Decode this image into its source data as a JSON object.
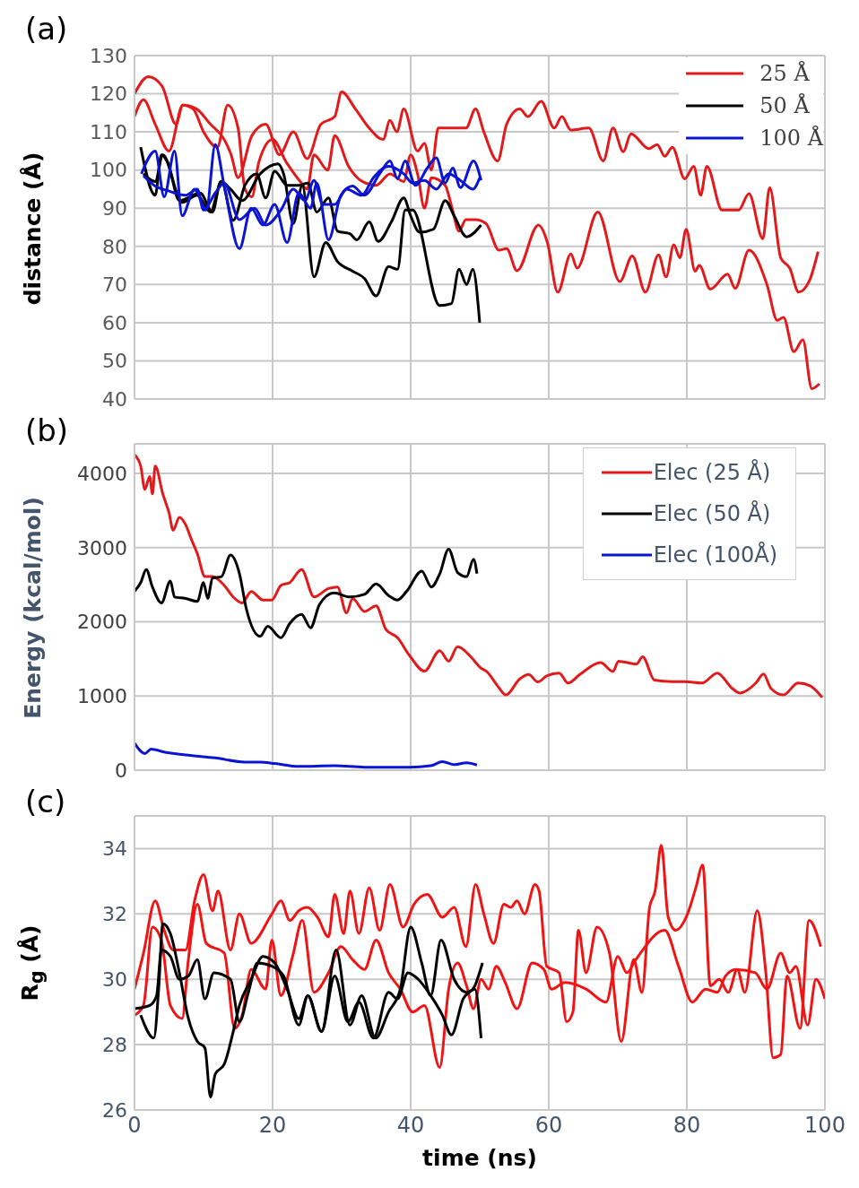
{
  "chart_data": [
    {
      "type": "line",
      "title": "(a)",
      "ylabel": "distance (Å)",
      "xlim": [
        0,
        100
      ],
      "xticks": [
        0,
        20,
        40,
        60,
        80,
        100
      ],
      "ylim": [
        40,
        130
      ],
      "yticks": [
        40,
        50,
        60,
        70,
        80,
        90,
        100,
        110,
        120,
        130
      ],
      "grid": true,
      "legend": "top right",
      "tick_labels": "y",
      "series": [
        {
          "name": "25 Å",
          "color": "#e31a1c",
          "x": [
            0,
            2,
            4,
            6,
            7,
            9,
            11,
            13,
            14,
            15,
            17,
            19,
            21,
            23,
            25,
            27,
            29,
            30,
            32,
            34,
            36,
            37,
            38,
            39,
            41,
            42,
            43,
            44,
            46,
            48,
            49.4,
            50.6,
            52.6,
            53.9,
            55.8,
            57,
            58.9,
            60.8,
            61.9,
            63.2,
            65.8,
            67.9,
            69.3,
            70.8,
            71.9,
            74.5,
            75.7,
            76.8,
            77.9,
            79.7,
            81,
            82,
            82.9,
            85.1,
            87.5,
            89,
            91,
            92,
            93.6,
            94.9,
            96.2,
            97.7,
            99
          ],
          "values": [
            120,
            124.5,
            122,
            112,
            117,
            116,
            112,
            108,
            104,
            98,
            109,
            112,
            104,
            110,
            103,
            112,
            114,
            120.5,
            116,
            111,
            108,
            113,
            110,
            116,
            105,
            107,
            100,
            111,
            111,
            111,
            116,
            110,
            102.4,
            112,
            116,
            114,
            118,
            111,
            114,
            110.5,
            111,
            102.4,
            111,
            104.8,
            109.5,
            105.6,
            106.7,
            103.6,
            106,
            97.7,
            101,
            93.4,
            101,
            89.5,
            89.5,
            93.8,
            82,
            95.4,
            77,
            74.3,
            68,
            70.8,
            78.6
          ]
        },
        {
          "color": "#e31a1c",
          "x": [
            0,
            1.3,
            3,
            5,
            7,
            8.5,
            10,
            12,
            13.5,
            15,
            16,
            17,
            18,
            20,
            22,
            24,
            25,
            26,
            28,
            29,
            31,
            33,
            35,
            37,
            39,
            40,
            41,
            42,
            43,
            45,
            46,
            47,
            48,
            49.4,
            50.9,
            52.8,
            53.9,
            55.4,
            58.5,
            59.8,
            61.3,
            63.2,
            64.1,
            67.1,
            70.3,
            72.1,
            74,
            75.9,
            77,
            78.1,
            79,
            79.9,
            81.2,
            81.8,
            83.4,
            85.9,
            87,
            89,
            91.6,
            93.1,
            94,
            95.5,
            96.8,
            98.1,
            99.2
          ],
          "values": [
            114,
            118.4,
            112,
            105,
            117,
            116,
            110,
            106,
            117,
            111,
            95,
            93,
            102,
            108,
            102,
            97,
            95,
            104,
            100,
            109,
            101,
            97,
            96,
            99,
            97,
            104,
            99,
            90,
            98,
            96,
            90,
            84,
            87,
            87,
            86,
            79,
            79.4,
            73.6,
            85.6,
            81,
            68,
            78,
            74.3,
            89,
            70.8,
            77.5,
            68,
            77.8,
            72,
            80.4,
            77,
            84.5,
            73.5,
            75,
            68.8,
            72.7,
            69,
            79,
            70,
            60.6,
            61.4,
            52.4,
            55.5,
            42.7,
            44
          ]
        },
        {
          "name": "50 Å",
          "color": "#000000",
          "x": [
            0.9,
            3,
            3.9,
            4.8,
            6.5,
            9.5,
            11.3,
            12.5,
            13.9,
            15.6,
            18.2,
            20.8,
            21.6,
            23,
            24.3,
            26,
            27.7,
            29.4,
            31.6,
            33.3,
            35,
            36.8,
            38.1,
            39.2,
            40.3,
            44.2,
            45.9,
            47,
            48.1,
            49,
            50
          ],
          "values": [
            106,
            93.4,
            104,
            102,
            92,
            94,
            89,
            97,
            95,
            92,
            99,
            101.6,
            99,
            86,
            96,
            72,
            81,
            76,
            73.5,
            71.6,
            67,
            74.7,
            74,
            89.5,
            89.5,
            64.5,
            65,
            74,
            70,
            74,
            60
          ]
        },
        {
          "color": "#000000",
          "x": [
            1.3,
            3,
            4.1,
            6.9,
            9.1,
            11,
            12.6,
            14.3,
            16,
            17.7,
            19,
            20.3,
            22.1,
            23.8,
            25.1,
            26.4,
            28.1,
            29.4,
            31.2,
            32.2,
            34,
            35.3,
            37.2,
            39,
            40,
            41.3,
            43.3,
            45,
            46.3,
            48.1,
            50.2
          ],
          "values": [
            99,
            97,
            104,
            91.5,
            93.4,
            89,
            97,
            86.8,
            96,
            99,
            92.7,
            99.7,
            96,
            96,
            96.6,
            89,
            92.7,
            84,
            83.3,
            81.7,
            86.4,
            81.3,
            86.4,
            92.7,
            88,
            83.7,
            84.5,
            92,
            88,
            82.5,
            85.6
          ]
        },
        {
          "name": "100 Å",
          "color": "#0a14d2",
          "x": [
            1,
            3,
            4.3,
            5.8,
            6.9,
            8.7,
            10.4,
            11.7,
            13,
            15.2,
            16.9,
            18.6,
            20.3,
            22.1,
            23.8,
            25.5,
            26.4,
            28.1,
            29.9,
            31.6,
            33.3,
            35.5,
            37,
            38.1,
            39.2,
            40.7,
            42.4,
            43.7,
            45,
            46.1,
            47.2,
            49.1,
            50.2
          ],
          "values": [
            99,
            105,
            93,
            105,
            88,
            95,
            89.5,
            106.7,
            95.8,
            79.4,
            90,
            85.6,
            91,
            81,
            94,
            90,
            96.6,
            81.7,
            93.4,
            95.8,
            93.4,
            99,
            102.4,
            97.7,
            102.4,
            96,
            100.5,
            103.2,
            96.6,
            100.5,
            95.4,
            102.4,
            97.3
          ]
        },
        {
          "color": "#0a14d2",
          "x": [
            1.3,
            3,
            4.8,
            7.4,
            9.1,
            10,
            11.7,
            13,
            15.2,
            17.4,
            19,
            21.2,
            23,
            24.7,
            26,
            27.3,
            29,
            30.7,
            32.9,
            34.6,
            36.8,
            39,
            40.3,
            42,
            43.7,
            45.5,
            47.2,
            49,
            50
          ],
          "values": [
            98.5,
            95.8,
            94.6,
            93.4,
            95,
            89.5,
            94,
            96.6,
            87,
            90,
            85.6,
            89.5,
            95,
            92,
            97.3,
            91,
            91,
            95,
            93.4,
            98,
            101,
            99,
            96.6,
            97.3,
            95,
            99,
            97.3,
            95,
            98
          ]
        }
      ]
    },
    {
      "type": "line",
      "title": "(b)",
      "ylabel": "Energy (kcal/mol)",
      "xlim": [
        0,
        100
      ],
      "xticks": [
        0,
        20,
        40,
        60,
        80,
        100
      ],
      "ylim": [
        0,
        4400
      ],
      "yticks": [
        0,
        1000,
        2000,
        3000,
        4000
      ],
      "grid": true,
      "legend": "top right",
      "tick_labels": "y",
      "series": [
        {
          "name": "Elec (25 Å)",
          "color": "#e31a1c",
          "x": [
            0,
            0.9,
            1.5,
            2.2,
            2.6,
            3,
            4.1,
            5,
            5.6,
            6.5,
            7.4,
            8.2,
            9.1,
            10.2,
            11.3,
            13,
            14.3,
            15.6,
            16.9,
            18.6,
            19.9,
            21.2,
            22.5,
            24.2,
            26,
            28.1,
            29.4,
            30.7,
            31.6,
            33.3,
            35,
            36.4,
            38.1,
            39.8,
            42,
            44.2,
            45.5,
            46.8,
            48.5,
            50.2,
            51,
            52.6,
            53.8,
            55.8,
            57.1,
            58.4,
            59.7,
            61.5,
            62.8,
            64.5,
            67.5,
            69.3,
            70.1,
            72.7,
            73.6,
            75.3,
            77.9,
            79.7,
            82.2,
            84.4,
            86.6,
            87.7,
            90,
            91.1,
            92.2,
            94,
            96.1,
            97.9,
            99.6
          ],
          "values": [
            4255,
            4100,
            3785,
            3960,
            3725,
            4100,
            3725,
            3470,
            3235,
            3410,
            3310,
            3120,
            2920,
            2610,
            2610,
            2490,
            2335,
            2255,
            2410,
            2295,
            2295,
            2490,
            2530,
            2705,
            2335,
            2450,
            2470,
            2120,
            2315,
            2140,
            2215,
            1900,
            1785,
            1550,
            1335,
            1610,
            1470,
            1665,
            1550,
            1375,
            1330,
            1135,
            1015,
            1230,
            1290,
            1190,
            1270,
            1310,
            1175,
            1290,
            1450,
            1330,
            1470,
            1430,
            1530,
            1215,
            1195,
            1195,
            1175,
            1310,
            1100,
            1040,
            1175,
            1295,
            1100,
            1015,
            1175,
            1135,
            980
          ]
        },
        {
          "name": "Elec (50 Å)",
          "color": "#000000",
          "x": [
            0,
            0.9,
            1.7,
            2.6,
            3.9,
            5.2,
            5.8,
            7.4,
            9.1,
            10,
            10.6,
            11.3,
            12.6,
            13.9,
            15.2,
            16.2,
            18.2,
            19.3,
            21.2,
            22.5,
            24.2,
            25.5,
            26.8,
            28.9,
            31.2,
            33.3,
            35,
            36.8,
            38.1,
            39.4,
            41.6,
            43,
            44.2,
            45.5,
            46.8,
            48.1,
            49.1,
            49.6
          ],
          "values": [
            2410,
            2530,
            2705,
            2470,
            2255,
            2550,
            2335,
            2315,
            2275,
            2530,
            2315,
            2590,
            2610,
            2900,
            2650,
            2175,
            1805,
            1940,
            1785,
            1980,
            2100,
            1920,
            2235,
            2390,
            2335,
            2370,
            2510,
            2355,
            2295,
            2410,
            2685,
            2470,
            2645,
            2980,
            2665,
            2610,
            2845,
            2650
          ]
        },
        {
          "name": "Elec (100Å)",
          "color": "#0a14d2",
          "x": [
            0,
            1.5,
            2.4,
            4.3,
            7.4,
            11.7,
            16,
            18.2,
            20.3,
            23.8,
            29,
            33.3,
            39.8,
            42.9,
            44.6,
            46.3,
            48.1,
            49.6
          ],
          "values": [
            365,
            225,
            285,
            245,
            205,
            165,
            110,
            110,
            90,
            50,
            60,
            40,
            40,
            60,
            115,
            75,
            100,
            70
          ]
        }
      ]
    },
    {
      "type": "line",
      "title": "(c)",
      "xlabel": "time (ns)",
      "ylabel": "R$_{g}$ (Å)",
      "xlim": [
        0,
        100
      ],
      "xticks": [
        0,
        20,
        40,
        60,
        80,
        100
      ],
      "ylim": [
        26,
        35
      ],
      "yticks": [
        26,
        28,
        30,
        32,
        34
      ],
      "grid": true,
      "series": [
        {
          "color": "#f01414",
          "x": [
            0,
            1.3,
            3,
            4.3,
            5.6,
            7.4,
            8.7,
            10,
            11.3,
            12.1,
            13.9,
            15.2,
            16.9,
            19.9,
            21.2,
            22.5,
            23.8,
            25,
            26.5,
            28.1,
            29,
            30.3,
            31.2,
            32.5,
            34,
            35.5,
            37,
            38.9,
            40.5,
            42.4,
            44.6,
            46.3,
            48,
            49.4,
            50.6,
            52,
            53.5,
            54.5,
            55.4,
            56.5,
            58,
            58.6,
            59.7,
            61.5,
            62.6,
            63.5,
            64.3,
            65.4,
            67,
            68.8,
            70.5,
            72.3,
            73.5,
            74.6,
            75.4,
            76.3,
            77.3,
            78.4,
            80.1,
            81.3,
            82.3,
            83.4,
            84.7,
            86,
            87.3,
            88.4,
            90.2,
            91.4,
            92.5,
            93.6,
            94.5,
            96.4,
            97.7,
            99.4
          ],
          "values": [
            29.7,
            30.8,
            32.4,
            31.5,
            30.9,
            30.9,
            32.4,
            33.2,
            32.1,
            32.7,
            30.9,
            32,
            31.1,
            32,
            32.4,
            31.8,
            32.1,
            32.2,
            31.9,
            31.3,
            32.6,
            31.4,
            32.7,
            31.4,
            32.8,
            31.5,
            32.9,
            31.6,
            32.3,
            32.6,
            31.9,
            32.2,
            31,
            32.9,
            32,
            31.1,
            32.3,
            32.2,
            32.4,
            32,
            32.9,
            32.7,
            30.4,
            30.2,
            28.7,
            29,
            31.5,
            30.2,
            31.6,
            30.8,
            28.1,
            30.6,
            29.6,
            32.2,
            32.7,
            34.1,
            31.9,
            31.5,
            32,
            32.8,
            33.5,
            29.8,
            30,
            29.6,
            30.3,
            29.6,
            32.1,
            30.3,
            27.6,
            27.7,
            30.1,
            28.5,
            31.8,
            31
          ]
        },
        {
          "color": "#f01414",
          "x": [
            0,
            1.3,
            2.6,
            3.9,
            5.2,
            6.9,
            7.8,
            9.1,
            10.4,
            13,
            14.5,
            15.6,
            16.9,
            19,
            19.9,
            21.2,
            22.9,
            24.3,
            26,
            28.1,
            29.9,
            31.6,
            33.3,
            35,
            36.8,
            38.5,
            40.3,
            42,
            44.2,
            45.5,
            46.8,
            48.1,
            49.1,
            50.2,
            51.3,
            52.4,
            53.7,
            55.4,
            57.6,
            59.3,
            60.4,
            62.4,
            65.4,
            68.3,
            70,
            71.3,
            72.6,
            76.8,
            78.8,
            80.8,
            82.7,
            84.4,
            85.6,
            87.1,
            89.9,
            91.6,
            93.6,
            94.9,
            95.8,
            97.5,
            98.7,
            100
          ],
          "values": [
            28.9,
            29.2,
            31.6,
            31.2,
            29.2,
            28.8,
            30.6,
            32.3,
            31.1,
            30.8,
            28.5,
            28.9,
            30.3,
            29.7,
            31.2,
            29.5,
            30.7,
            31.8,
            29.6,
            30.2,
            31,
            30.6,
            30.3,
            31.2,
            30.2,
            29.7,
            29,
            29.2,
            27.3,
            29.7,
            30.5,
            29.8,
            29.1,
            30,
            29.7,
            30.4,
            29.9,
            29.1,
            30.5,
            30.3,
            29.7,
            29.9,
            29.7,
            29.3,
            30.7,
            30.2,
            30.6,
            31.5,
            30.4,
            29.3,
            29.7,
            29.6,
            30.1,
            30.3,
            30.2,
            29.7,
            30.8,
            30.2,
            30.4,
            28.6,
            30,
            29.4
          ]
        },
        {
          "color": "#000000",
          "x": [
            0.9,
            2.8,
            3.5,
            4.1,
            5.2,
            6.5,
            7.8,
            9.1,
            10.2,
            11,
            11.7,
            13,
            14.3,
            15.2,
            16.9,
            18.6,
            20.3,
            22.1,
            23.8,
            25.1,
            27.1,
            29.2,
            31.2,
            32.9,
            34.9,
            36.8,
            38.5,
            40,
            41.6,
            42.9,
            44.4,
            46.3,
            48.1,
            49.3,
            50.2
          ],
          "values": [
            28.9,
            28.2,
            29.7,
            31.7,
            31.4,
            30.2,
            28.8,
            28.1,
            27.9,
            26.4,
            27.1,
            27.4,
            28.4,
            29.2,
            30,
            30.7,
            30.5,
            29.7,
            28.8,
            29.5,
            28.4,
            30.9,
            28.6,
            29.5,
            28.2,
            29,
            29.7,
            31.6,
            30.5,
            29.5,
            31.2,
            30,
            29.6,
            29.7,
            28.2
          ]
        },
        {
          "color": "#000000",
          "x": [
            0,
            2.2,
            3.2,
            3.9,
            5.2,
            6.5,
            7.8,
            9.1,
            10.2,
            11.5,
            13.9,
            15.2,
            16.5,
            17.8,
            19.9,
            21.6,
            23.8,
            25.1,
            27.1,
            29,
            30.9,
            32.5,
            34.6,
            36.8,
            38.1,
            39.6,
            41.1,
            42.9,
            44.6,
            45.9,
            47.6,
            49.3,
            50.4
          ],
          "values": [
            29.1,
            29.2,
            29.5,
            30.9,
            30.7,
            30,
            30.1,
            30.6,
            29.4,
            30.2,
            30,
            28.7,
            29.6,
            30.5,
            30.4,
            30.1,
            28.6,
            29.5,
            28.4,
            30.1,
            28.7,
            29.3,
            28.2,
            29.6,
            29.4,
            30.2,
            30,
            29.5,
            28.9,
            28.3,
            29.4,
            29.8,
            30.5
          ]
        }
      ]
    }
  ]
}
